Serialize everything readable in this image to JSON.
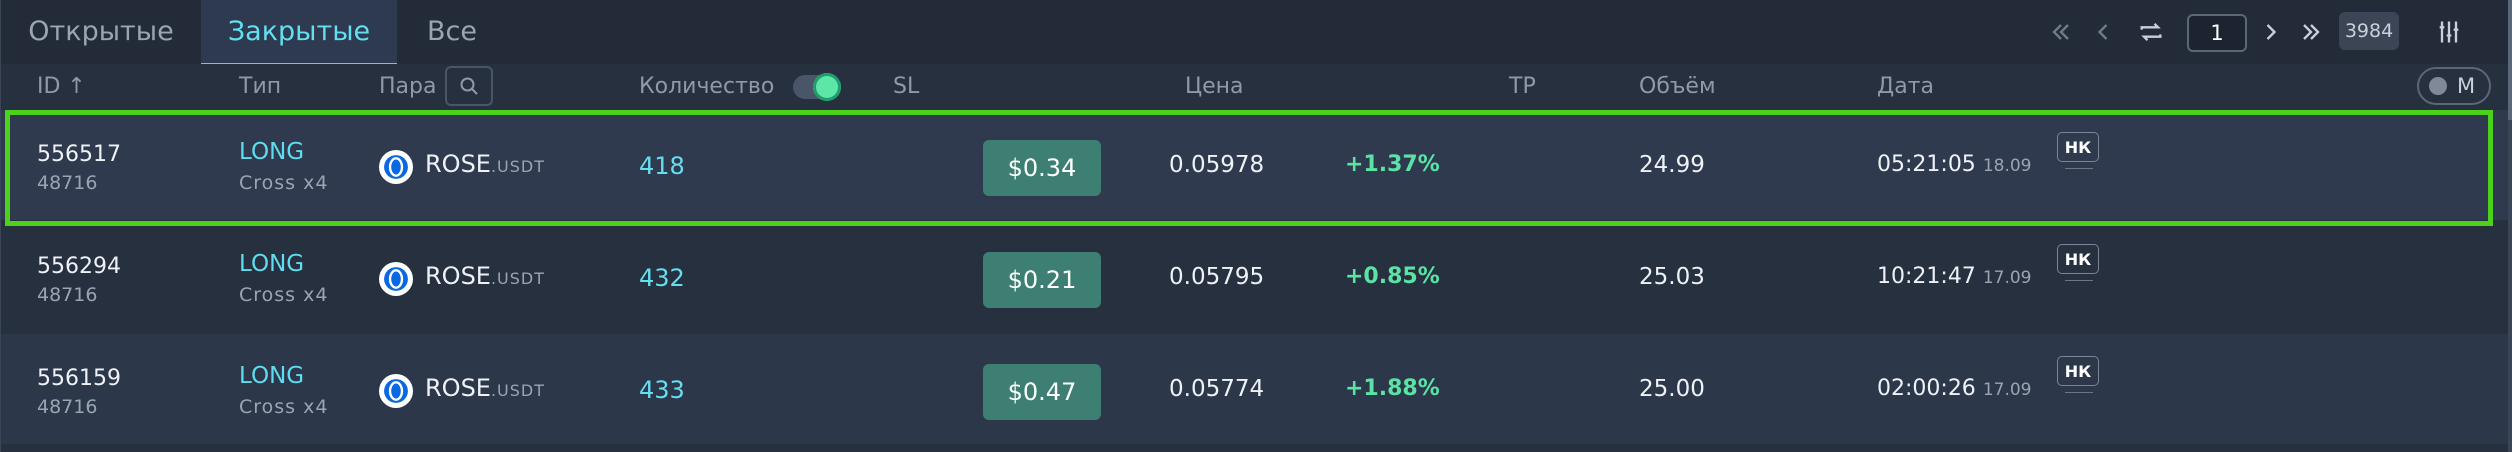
{
  "tabs": [
    {
      "label": "Открытые",
      "active": false
    },
    {
      "label": "Закрытые",
      "active": true
    },
    {
      "label": "Все",
      "active": false
    }
  ],
  "pagination": {
    "current_page": "1",
    "total_count": "3984",
    "icons": [
      "double-chevron-left-icon",
      "chevron-left-icon",
      "refresh-icon",
      "chevron-right-icon",
      "double-chevron-right-icon",
      "filter-settings-icon"
    ]
  },
  "columns": {
    "id": "ID ↑",
    "type": "Тип",
    "pair": "Пара",
    "quantity": "Количество",
    "sl": "SL",
    "price": "Цена",
    "tp": "TP",
    "volume": "Объём",
    "date": "Дата"
  },
  "quantity_toggle_on": true,
  "m_toggle_label": "M",
  "colors": {
    "accent": "#64dff0",
    "positive": "#5be3a5",
    "sl_button": "#3d7f73",
    "selection_outline": "#4cd21a"
  },
  "rows": [
    {
      "id": "556517",
      "sub_id": "48716",
      "side": "LONG",
      "margin": "Cross x4",
      "base": "ROSE",
      "quote": ".USDT",
      "qty": "418",
      "sl": "$0.34",
      "price": "0.05978",
      "change": "+1.37%",
      "volume": "24.99",
      "time": "05:21:05",
      "date": "18.09",
      "badge": "НК",
      "selected": true
    },
    {
      "id": "556294",
      "sub_id": "48716",
      "side": "LONG",
      "margin": "Cross x4",
      "base": "ROSE",
      "quote": ".USDT",
      "qty": "432",
      "sl": "$0.21",
      "price": "0.05795",
      "change": "+0.85%",
      "volume": "25.03",
      "time": "10:21:47",
      "date": "17.09",
      "badge": "НК",
      "selected": false
    },
    {
      "id": "556159",
      "sub_id": "48716",
      "side": "LONG",
      "margin": "Cross x4",
      "base": "ROSE",
      "quote": ".USDT",
      "qty": "433",
      "sl": "$0.47",
      "price": "0.05774",
      "change": "+1.88%",
      "volume": "25.00",
      "time": "02:00:26",
      "date": "17.09",
      "badge": "НК",
      "selected": false
    }
  ]
}
